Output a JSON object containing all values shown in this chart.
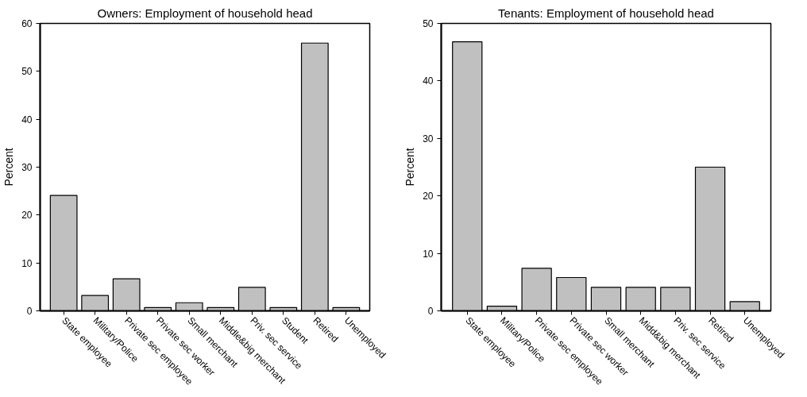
{
  "chart_data": [
    {
      "type": "bar",
      "title": "Owners: Employment of household head",
      "ylabel": "Percent",
      "categories": [
        "State employee",
        "Military/Police",
        "Private sec employee",
        "Private sec worker",
        "Small merchant",
        "Middle&big merchant",
        "Priv. sec service",
        "Student",
        "Retired",
        "Unemployed"
      ],
      "values": [
        24.1,
        3.2,
        6.7,
        0.7,
        1.7,
        0.7,
        4.9,
        0.7,
        55.9,
        0.7
      ],
      "color": "#c0c0c0",
      "ylim": [
        0,
        60
      ],
      "yticks": [
        0,
        10,
        20,
        30,
        40,
        50,
        60
      ],
      "grid": false
    },
    {
      "type": "bar",
      "title": "Tenants: Employment of household head",
      "ylabel": "Percent",
      "categories": [
        "State employee",
        "Military/Police",
        "Private sec employee",
        "Private sec worker",
        "Small merchant",
        "Midd&big merchant",
        "Priv. sec service",
        "Retired",
        "Unemployed"
      ],
      "values": [
        46.8,
        0.8,
        7.4,
        5.8,
        4.1,
        4.1,
        4.1,
        25.0,
        1.6
      ],
      "color": "#c0c0c0",
      "ylim": [
        0,
        50
      ],
      "yticks": [
        0,
        10,
        20,
        30,
        40,
        50
      ],
      "grid": false
    }
  ]
}
